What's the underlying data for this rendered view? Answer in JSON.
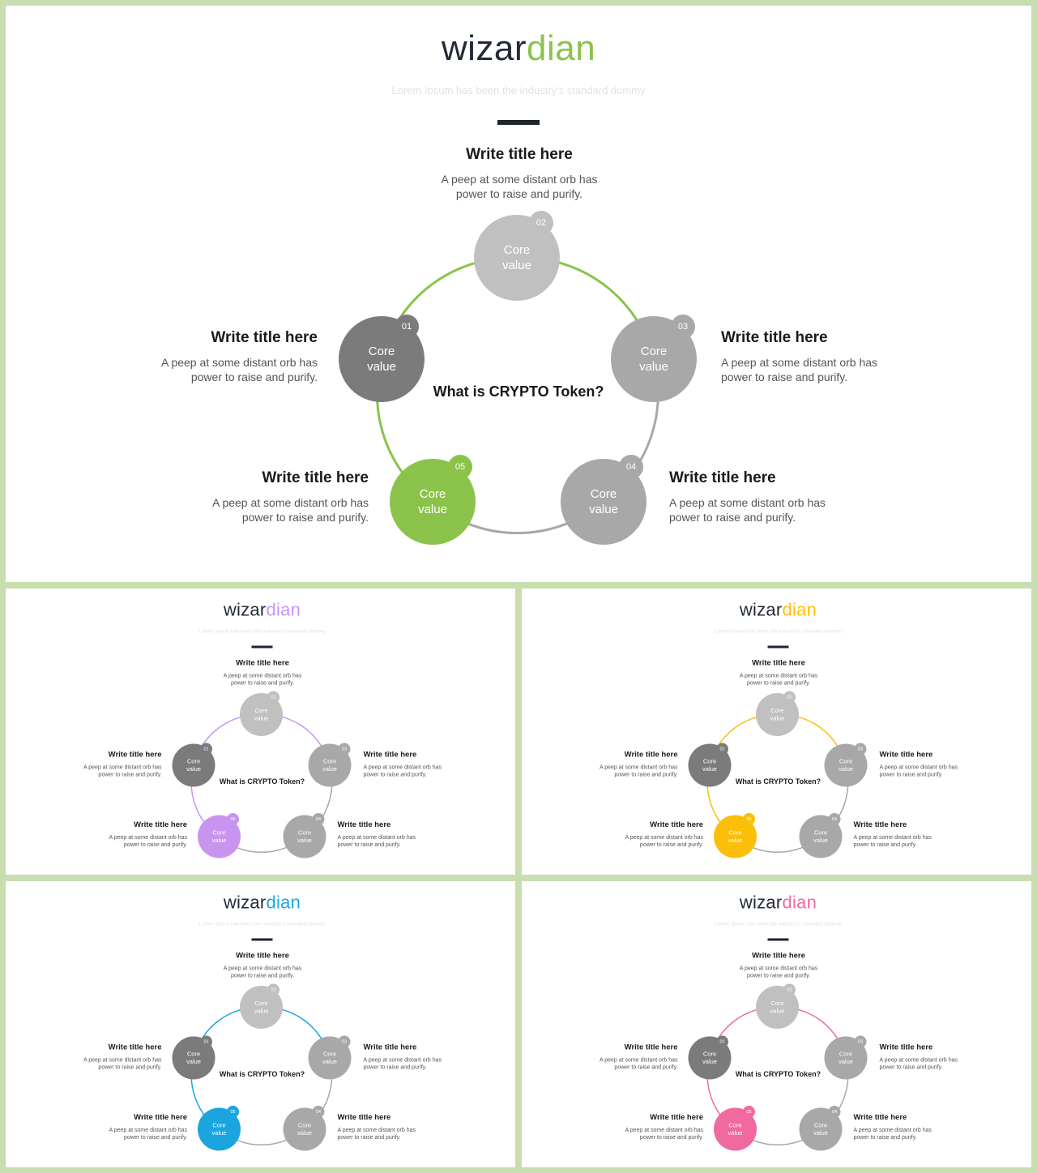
{
  "brand": {
    "dark": "wizar",
    "accent": "dian"
  },
  "subtitle": "Lorem Ipsum has been the industry's standard dummy",
  "center_question": "What is CRYPTO Token?",
  "core_label": "Core value",
  "item_title": "Write title here",
  "item_desc_line1": "A peep at some distant orb has",
  "item_desc_line2": "power to raise and purify.",
  "items": [
    {
      "number": "01",
      "tone": "dark"
    },
    {
      "number": "02",
      "tone": "light"
    },
    {
      "number": "03",
      "tone": "mid"
    },
    {
      "number": "04",
      "tone": "mid"
    },
    {
      "number": "05",
      "tone": "accent"
    }
  ],
  "colors": {
    "frame": "#c8deb0",
    "node_dark": "#7b7b7b",
    "node_mid": "#a8a8a8",
    "node_light": "#c0c0c0",
    "ring_gray": "#a8a8a8"
  },
  "variants": [
    {
      "accent": "#8bc34a"
    },
    {
      "accent": "#c994f0"
    },
    {
      "accent": "#fbbf0a"
    },
    {
      "accent": "#1aa5df"
    },
    {
      "accent": "#f06aa0"
    }
  ]
}
